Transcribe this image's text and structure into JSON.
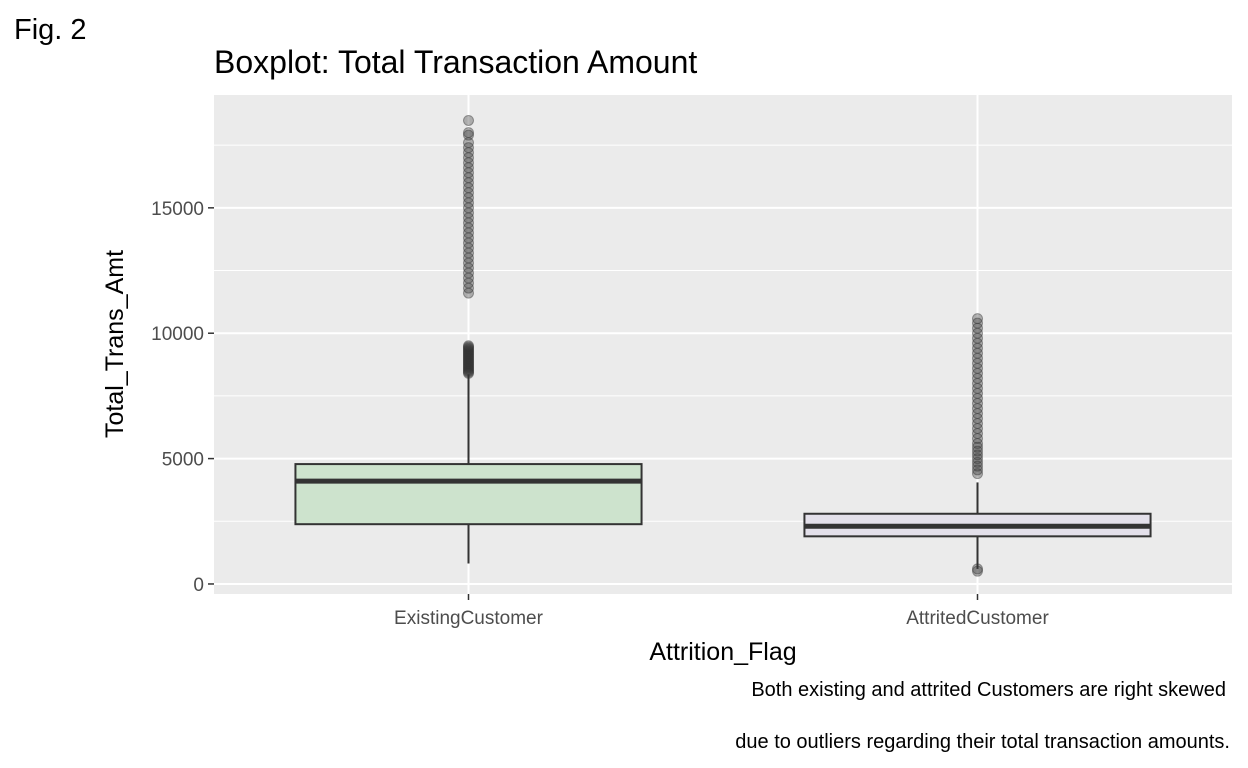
{
  "figure_label": "Fig. 2",
  "caption": [
    "Both existing and attrited Customers are right skewed",
    "due to outliers regarding their total transaction amounts."
  ],
  "chart_data": {
    "type": "boxplot",
    "title": "Boxplot: Total Transaction Amount",
    "xlabel": "Attrition_Flag",
    "ylabel": "Total_Trans_Amt",
    "categories": [
      "ExistingCustomer",
      "AttritedCustomer"
    ],
    "ylim": [
      -400,
      19500
    ],
    "yticks": [
      0,
      5000,
      10000,
      15000
    ],
    "grid": true,
    "background": "#ebebeb",
    "boxes": [
      {
        "category": "ExistingCustomer",
        "fill": "#cde3cd",
        "whisker_low": 816,
        "q1": 2384,
        "median": 4100,
        "q3": 4781,
        "whisker_high": 8360,
        "outliers": [
          8400,
          8450,
          8500,
          8550,
          8600,
          8650,
          8700,
          8750,
          8800,
          8850,
          8900,
          8950,
          9000,
          9050,
          9100,
          9150,
          9200,
          9250,
          9300,
          9350,
          9400,
          9450,
          9500,
          11600,
          11800,
          12000,
          12200,
          12400,
          12600,
          12800,
          13000,
          13200,
          13400,
          13600,
          13800,
          14000,
          14200,
          14400,
          14600,
          14800,
          15000,
          15200,
          15400,
          15600,
          15800,
          16000,
          16200,
          16400,
          16600,
          16800,
          17000,
          17200,
          17400,
          17600,
          17900,
          18000,
          18484
        ]
      },
      {
        "category": "AttritedCustomer",
        "fill": "#e3e0ea",
        "whisker_low": 600,
        "q1": 1900,
        "median": 2300,
        "q3": 2800,
        "whisker_high": 4050,
        "outliers": [
          510,
          600,
          4400,
          4550,
          4700,
          4850,
          5000,
          5150,
          5300,
          5450,
          5600,
          5800,
          6000,
          6200,
          6400,
          6600,
          6800,
          7000,
          7200,
          7400,
          7600,
          7800,
          8000,
          8200,
          8400,
          8600,
          8800,
          9000,
          9200,
          9400,
          9600,
          9800,
          10000,
          10200,
          10400,
          10583
        ]
      }
    ]
  }
}
